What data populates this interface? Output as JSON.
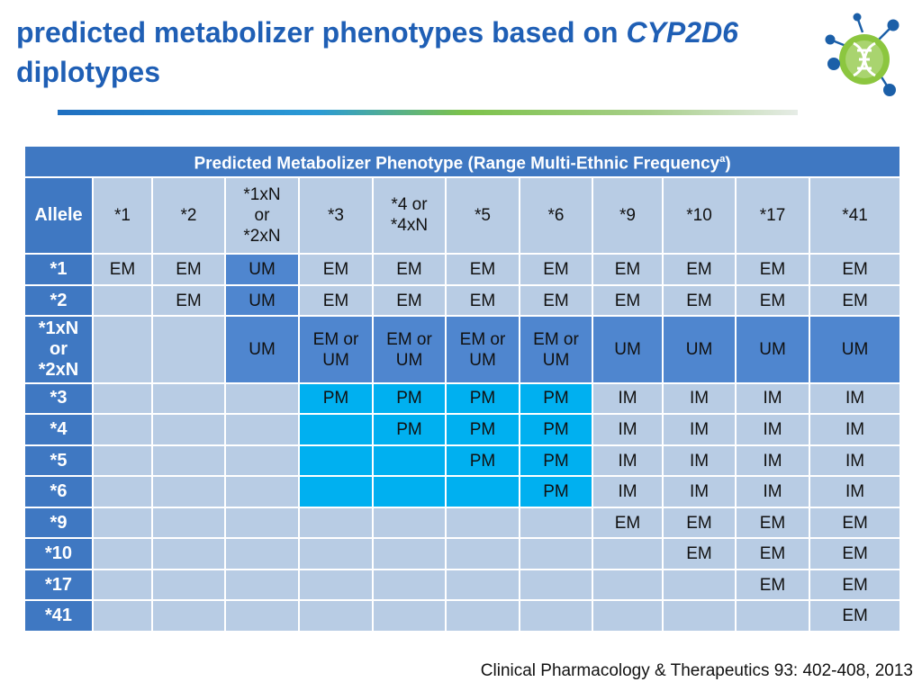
{
  "title": {
    "line1_prefix": "predicted metabolizer phenotypes based on ",
    "gene": "CYP2D6",
    "line2": "diplotypes"
  },
  "table": {
    "header": "Predicted Metabolizer Phenotype (Range Multi-Ethnic Frequency",
    "header_sup": "a",
    "header_suffix": ")",
    "allele_label": "Allele",
    "columns": [
      [
        "*1"
      ],
      [
        "*2"
      ],
      [
        "*1xN",
        "or",
        "*2xN"
      ],
      [
        "*3"
      ],
      [
        "*4 or",
        "*4xN"
      ],
      [
        "*5"
      ],
      [
        "*6"
      ],
      [
        "*9"
      ],
      [
        "*10"
      ],
      [
        "*17"
      ],
      [
        "*41"
      ]
    ],
    "rows": [
      {
        "label": [
          "*1"
        ],
        "cells": [
          [
            "EM"
          ],
          [
            "EM"
          ],
          [
            "UM"
          ],
          [
            "EM"
          ],
          [
            "EM"
          ],
          [
            "EM"
          ],
          [
            "EM"
          ],
          [
            "EM"
          ],
          [
            "EM"
          ],
          [
            "EM"
          ],
          [
            "EM"
          ]
        ]
      },
      {
        "label": [
          "*2"
        ],
        "cells": [
          [],
          [
            "EM"
          ],
          [
            "UM"
          ],
          [
            "EM"
          ],
          [
            "EM"
          ],
          [
            "EM"
          ],
          [
            "EM"
          ],
          [
            "EM"
          ],
          [
            "EM"
          ],
          [
            "EM"
          ],
          [
            "EM"
          ]
        ]
      },
      {
        "label": [
          "*1xN",
          "or",
          "*2xN"
        ],
        "cells": [
          [],
          [],
          [
            "UM"
          ],
          [
            "EM or",
            "UM"
          ],
          [
            "EM or",
            "UM"
          ],
          [
            "EM or",
            "UM"
          ],
          [
            "EM or",
            "UM"
          ],
          [
            "UM"
          ],
          [
            "UM"
          ],
          [
            "UM"
          ],
          [
            "UM"
          ]
        ]
      },
      {
        "label": [
          "*3"
        ],
        "cells": [
          [],
          [],
          [],
          [
            "PM"
          ],
          [
            "PM"
          ],
          [
            "PM"
          ],
          [
            "PM"
          ],
          [
            "IM"
          ],
          [
            "IM"
          ],
          [
            "IM"
          ],
          [
            "IM"
          ]
        ]
      },
      {
        "label": [
          "*4"
        ],
        "cells": [
          [],
          [],
          [],
          [],
          [
            "PM"
          ],
          [
            "PM"
          ],
          [
            "PM"
          ],
          [
            "IM"
          ],
          [
            "IM"
          ],
          [
            "IM"
          ],
          [
            "IM"
          ]
        ]
      },
      {
        "label": [
          "*5"
        ],
        "cells": [
          [],
          [],
          [],
          [],
          [],
          [
            "PM"
          ],
          [
            "PM"
          ],
          [
            "IM"
          ],
          [
            "IM"
          ],
          [
            "IM"
          ],
          [
            "IM"
          ]
        ]
      },
      {
        "label": [
          "*6"
        ],
        "cells": [
          [],
          [],
          [],
          [],
          [],
          [],
          [
            "PM"
          ],
          [
            "IM"
          ],
          [
            "IM"
          ],
          [
            "IM"
          ],
          [
            "IM"
          ]
        ]
      },
      {
        "label": [
          "*9"
        ],
        "cells": [
          [],
          [],
          [],
          [],
          [],
          [],
          [],
          [
            "EM"
          ],
          [
            "EM"
          ],
          [
            "EM"
          ],
          [
            "EM"
          ]
        ]
      },
      {
        "label": [
          "*10"
        ],
        "cells": [
          [],
          [],
          [],
          [],
          [],
          [],
          [],
          [],
          [
            "EM"
          ],
          [
            "EM"
          ],
          [
            "EM"
          ]
        ]
      },
      {
        "label": [
          "*17"
        ],
        "cells": [
          [],
          [],
          [],
          [],
          [],
          [],
          [],
          [],
          [],
          [
            "EM"
          ],
          [
            "EM"
          ]
        ]
      },
      {
        "label": [
          "*41"
        ],
        "cells": [
          [],
          [],
          [],
          [],
          [],
          [],
          [],
          [],
          [],
          [],
          [
            "EM"
          ]
        ]
      }
    ]
  },
  "colors": {
    "title": "#1f5fb5",
    "header_fill": "#3f78c2",
    "light_cell": "#b8cce4",
    "um_cell": "#4f86cf",
    "pm_cell": "#00b0f0",
    "logo_green": "#8cc63f",
    "logo_blue": "#1b5fa8"
  },
  "logo": {
    "icon": "dna-network-logo-icon"
  },
  "citation": "Clinical Pharmacology & Therapeutics 93: 402-408, 2013"
}
